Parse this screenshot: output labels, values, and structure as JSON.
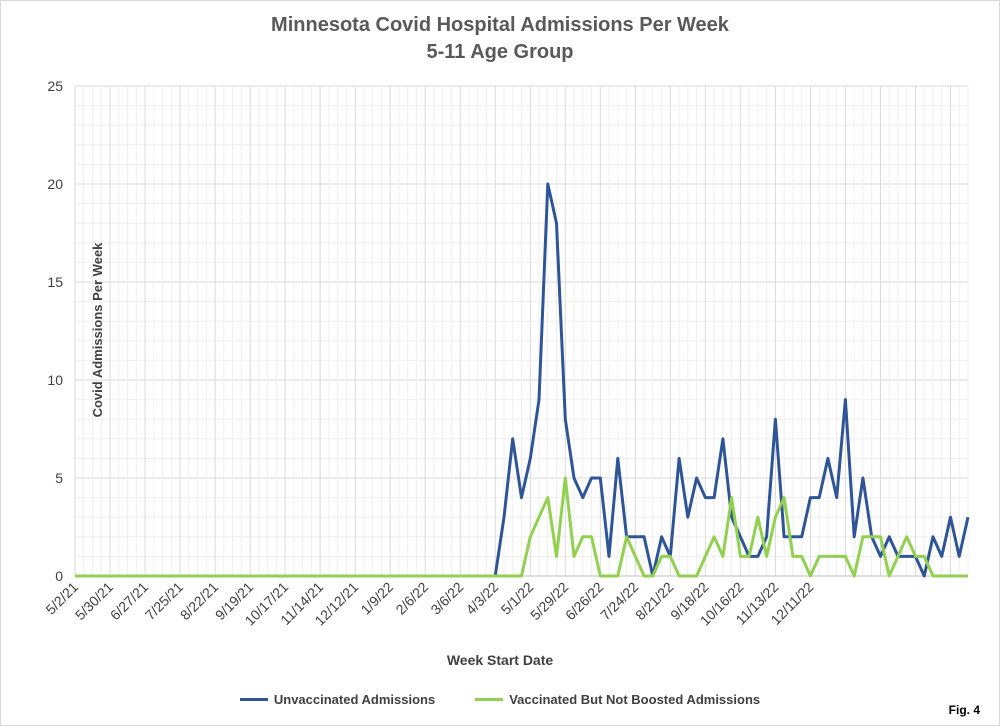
{
  "chart_data": {
    "type": "line",
    "title": "Minnesota Covid Hospital Admissions Per Week",
    "subtitle": "5-11 Age Group",
    "xlabel": "Week Start Date",
    "ylabel": "Covid Admissions Per Week",
    "ylim": [
      0,
      25
    ],
    "y_ticks": [
      "0",
      "5",
      "10",
      "15",
      "20",
      "25"
    ],
    "x_tick_labels": [
      "5/2/21",
      "5/30/21",
      "6/27/21",
      "7/25/21",
      "8/22/21",
      "9/19/21",
      "10/17/21",
      "11/14/21",
      "12/12/21",
      "1/9/22",
      "2/6/22",
      "3/6/22",
      "4/3/22",
      "5/1/22",
      "5/29/22",
      "6/26/22",
      "7/24/22",
      "8/21/22",
      "9/18/22",
      "10/16/22",
      "11/13/22",
      "12/11/22"
    ],
    "x_start": "5/2/21",
    "x_end": "12/11/22",
    "grid": true,
    "legend_position": "bottom",
    "series": [
      {
        "name": "Unvaccinated Admissions",
        "color": "#2f5597",
        "values": [
          0,
          0,
          0,
          0,
          0,
          0,
          0,
          0,
          0,
          0,
          0,
          0,
          0,
          0,
          0,
          0,
          0,
          0,
          0,
          0,
          0,
          0,
          0,
          0,
          0,
          0,
          0,
          0,
          0,
          0,
          0,
          0,
          0,
          0,
          0,
          0,
          0,
          0,
          0,
          0,
          0,
          0,
          0,
          0,
          0,
          0,
          0,
          0,
          0,
          3,
          7,
          4,
          6,
          9,
          20,
          18,
          8,
          5,
          4,
          5,
          5,
          1,
          6,
          2,
          2,
          2,
          0,
          2,
          1,
          6,
          3,
          5,
          4,
          4,
          7,
          3,
          2,
          1,
          1,
          2,
          8,
          2,
          2,
          2,
          4,
          4,
          6,
          4,
          9,
          2,
          5,
          2,
          1,
          2,
          1,
          1,
          1,
          0,
          2,
          1,
          3,
          1,
          3
        ]
      },
      {
        "name": "Vaccinated But Not Boosted Admissions",
        "color": "#92d050",
        "values": [
          0,
          0,
          0,
          0,
          0,
          0,
          0,
          0,
          0,
          0,
          0,
          0,
          0,
          0,
          0,
          0,
          0,
          0,
          0,
          0,
          0,
          0,
          0,
          0,
          0,
          0,
          0,
          0,
          0,
          0,
          0,
          0,
          0,
          0,
          0,
          0,
          0,
          0,
          0,
          0,
          0,
          0,
          0,
          0,
          0,
          0,
          0,
          0,
          0,
          0,
          0,
          0,
          2,
          3,
          4,
          1,
          5,
          1,
          2,
          2,
          0,
          0,
          0,
          2,
          1,
          0,
          0,
          1,
          1,
          0,
          0,
          0,
          1,
          2,
          1,
          4,
          1,
          1,
          3,
          1,
          3,
          4,
          1,
          1,
          0,
          1,
          1,
          1,
          1,
          0,
          2,
          2,
          2,
          0,
          1,
          2,
          1,
          1,
          0,
          0,
          0,
          0,
          0
        ]
      }
    ]
  },
  "fig_label": "Fig. 4"
}
